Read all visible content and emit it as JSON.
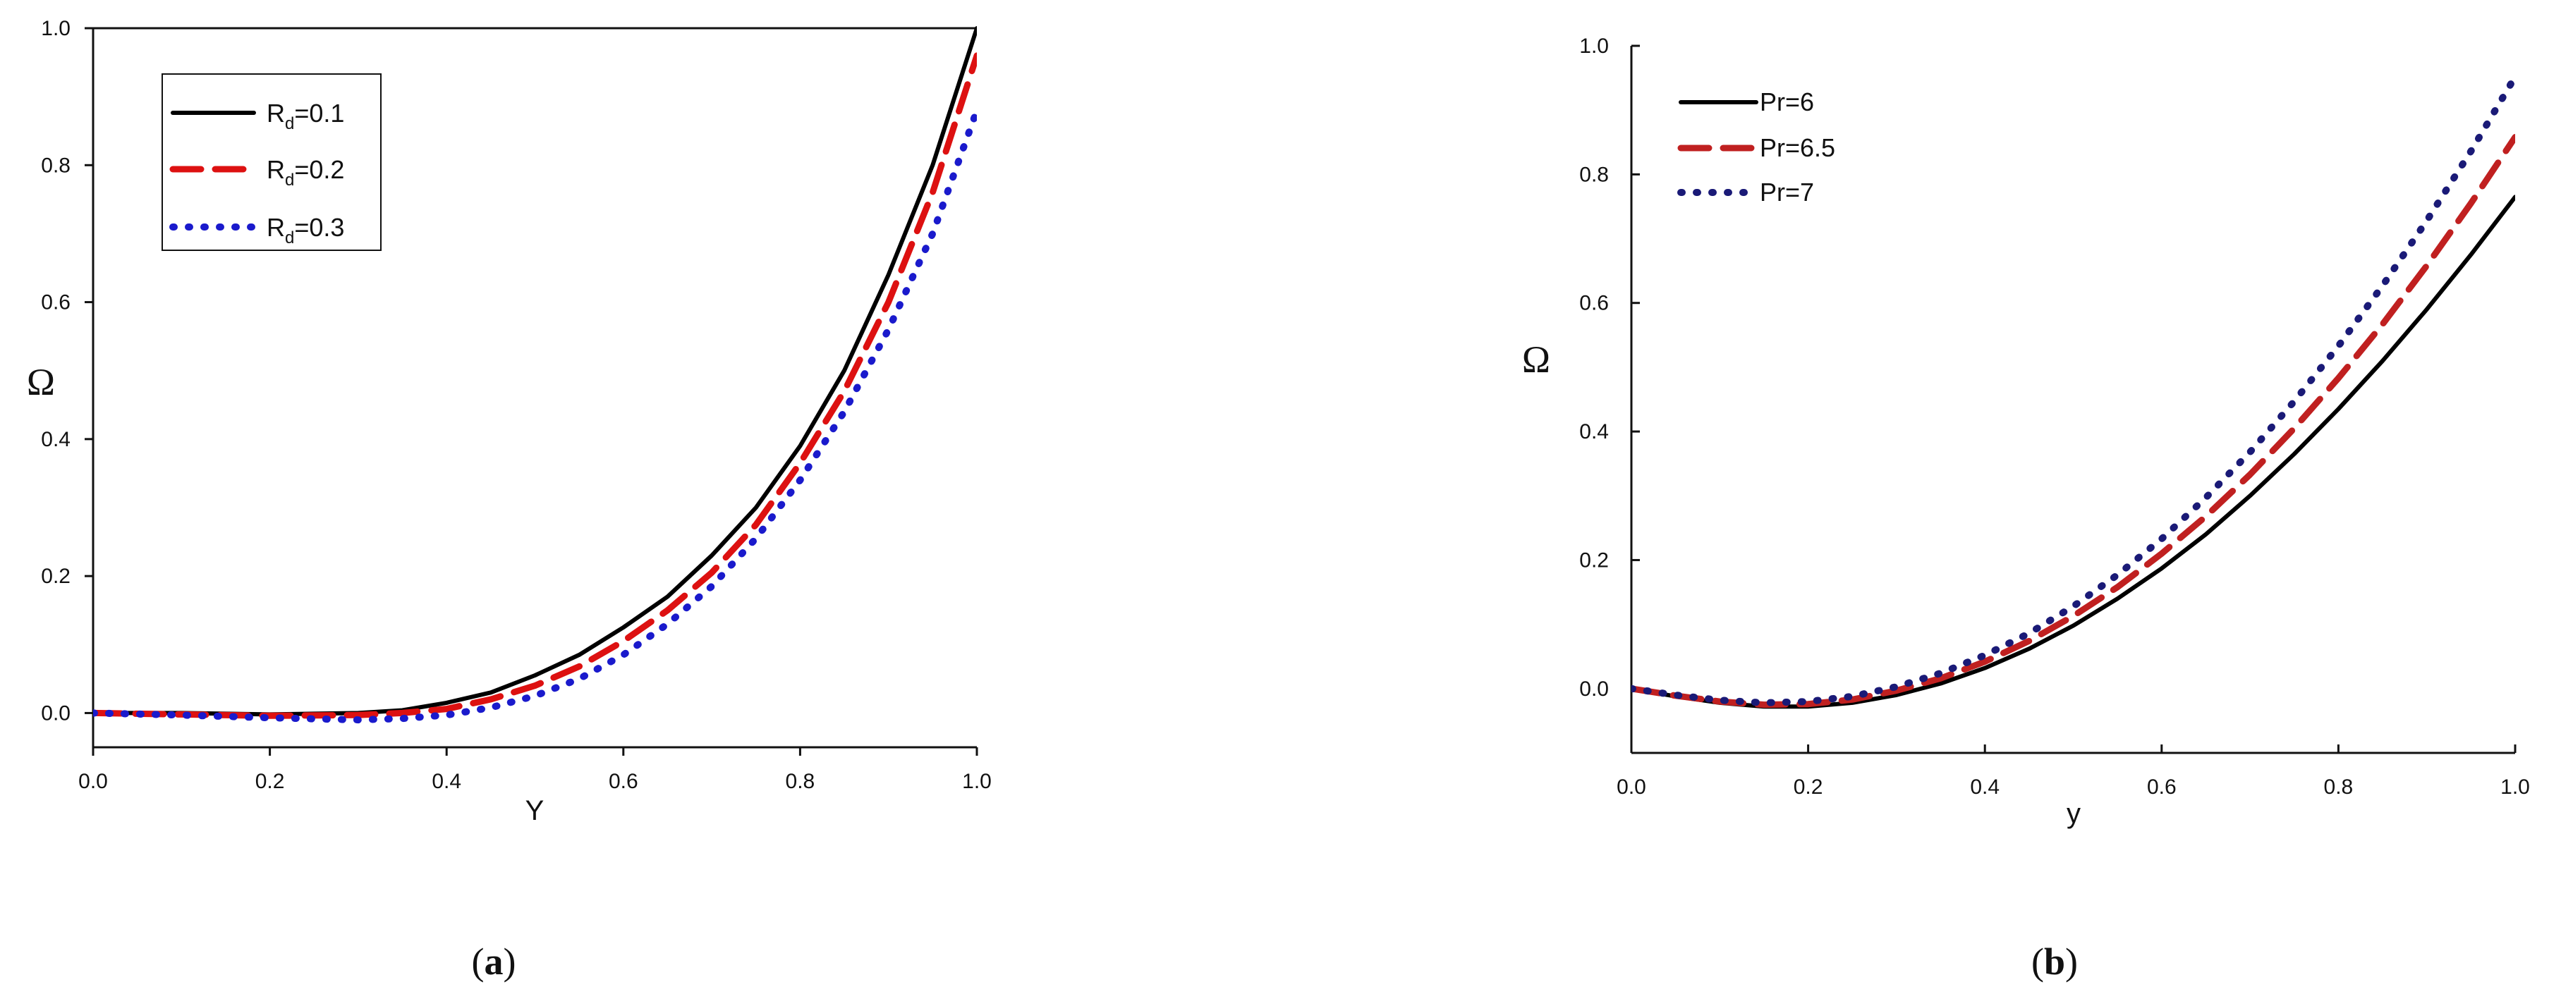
{
  "figure": {
    "panel_labels": [
      {
        "open": "(",
        "letter": "a",
        "close": ")"
      },
      {
        "open": "(",
        "letter": "b",
        "close": ")"
      }
    ]
  },
  "chart_data": [
    {
      "type": "line",
      "xlabel": "Y",
      "ylabel": "Ω",
      "xlim": [
        0.0,
        1.0
      ],
      "ylim": [
        -0.05,
        1.0
      ],
      "xticks": [
        "0.0",
        "0.2",
        "0.4",
        "0.6",
        "0.8",
        "1.0"
      ],
      "yticks": [
        "0.0",
        "0.2",
        "0.4",
        "0.6",
        "0.8",
        "1.0"
      ],
      "legend_position": "top-left",
      "series": [
        {
          "name": "R",
          "subscript": "d",
          "value": "=0.1",
          "style": "solid",
          "color": "#000000",
          "x": [
            0.0,
            0.1,
            0.2,
            0.3,
            0.35,
            0.4,
            0.45,
            0.5,
            0.55,
            0.6,
            0.65,
            0.7,
            0.75,
            0.8,
            0.85,
            0.9,
            0.95,
            1.0
          ],
          "y": [
            0.0,
            0.0,
            -0.002,
            0.0,
            0.004,
            0.015,
            0.03,
            0.055,
            0.085,
            0.125,
            0.17,
            0.23,
            0.3,
            0.39,
            0.5,
            0.64,
            0.8,
            1.0
          ]
        },
        {
          "name": "R",
          "subscript": "d",
          "value": "=0.2",
          "style": "dashed",
          "color": "#dd1111",
          "x": [
            0.0,
            0.1,
            0.2,
            0.3,
            0.35,
            0.4,
            0.45,
            0.5,
            0.55,
            0.6,
            0.65,
            0.7,
            0.75,
            0.8,
            0.85,
            0.9,
            0.95,
            1.0
          ],
          "y": [
            0.0,
            -0.002,
            -0.004,
            -0.003,
            0.0,
            0.006,
            0.02,
            0.04,
            0.068,
            0.105,
            0.15,
            0.205,
            0.275,
            0.365,
            0.47,
            0.6,
            0.76,
            0.96
          ]
        },
        {
          "name": "R",
          "subscript": "d",
          "value": "=0.3",
          "style": "dotted",
          "color": "#1a1acc",
          "x": [
            0.0,
            0.1,
            0.2,
            0.3,
            0.35,
            0.4,
            0.45,
            0.5,
            0.55,
            0.6,
            0.65,
            0.7,
            0.75,
            0.8,
            0.85,
            0.9,
            0.95,
            1.0
          ],
          "y": [
            0.0,
            -0.003,
            -0.007,
            -0.01,
            -0.008,
            -0.003,
            0.008,
            0.025,
            0.05,
            0.085,
            0.13,
            0.185,
            0.255,
            0.34,
            0.44,
            0.56,
            0.7,
            0.88
          ]
        }
      ]
    },
    {
      "type": "line",
      "xlabel": "y",
      "ylabel": "Ω",
      "xlim": [
        0.0,
        1.0
      ],
      "ylim": [
        -0.1,
        1.0
      ],
      "xticks": [
        "0.0",
        "0.2",
        "0.4",
        "0.6",
        "0.8",
        "1.0"
      ],
      "yticks": [
        "0.0",
        "0.2",
        "0.4",
        "0.6",
        "0.8",
        "1.0"
      ],
      "legend_position": "top-left",
      "series": [
        {
          "name": "Pr=6",
          "style": "solid",
          "color": "#000000",
          "x": [
            0.0,
            0.05,
            0.1,
            0.15,
            0.2,
            0.25,
            0.3,
            0.35,
            0.4,
            0.45,
            0.5,
            0.55,
            0.6,
            0.65,
            0.7,
            0.75,
            0.8,
            0.85,
            0.9,
            0.95,
            1.0
          ],
          "y": [
            0.0,
            -0.012,
            -0.022,
            -0.028,
            -0.028,
            -0.022,
            -0.01,
            0.008,
            0.032,
            0.062,
            0.098,
            0.14,
            0.187,
            0.24,
            0.3,
            0.365,
            0.435,
            0.51,
            0.59,
            0.675,
            0.765
          ]
        },
        {
          "name": "Pr=6.5",
          "style": "dashed",
          "color": "#c02020",
          "x": [
            0.0,
            0.05,
            0.1,
            0.15,
            0.2,
            0.25,
            0.3,
            0.35,
            0.4,
            0.45,
            0.5,
            0.55,
            0.6,
            0.65,
            0.7,
            0.75,
            0.8,
            0.85,
            0.9,
            0.95,
            1.0
          ],
          "y": [
            0.0,
            -0.011,
            -0.02,
            -0.025,
            -0.024,
            -0.017,
            -0.003,
            0.016,
            0.042,
            0.074,
            0.113,
            0.158,
            0.21,
            0.268,
            0.333,
            0.405,
            0.483,
            0.567,
            0.658,
            0.755,
            0.858
          ]
        },
        {
          "name": "Pr=7",
          "style": "dotted",
          "color": "#1a1a77",
          "x": [
            0.0,
            0.05,
            0.1,
            0.15,
            0.2,
            0.25,
            0.3,
            0.35,
            0.4,
            0.45,
            0.5,
            0.55,
            0.6,
            0.65,
            0.7,
            0.75,
            0.8,
            0.85,
            0.9,
            0.95,
            1.0
          ],
          "y": [
            0.0,
            -0.01,
            -0.018,
            -0.022,
            -0.02,
            -0.012,
            0.003,
            0.024,
            0.052,
            0.086,
            0.128,
            0.177,
            0.233,
            0.297,
            0.368,
            0.447,
            0.533,
            0.627,
            0.728,
            0.836,
            0.952
          ]
        }
      ]
    }
  ]
}
